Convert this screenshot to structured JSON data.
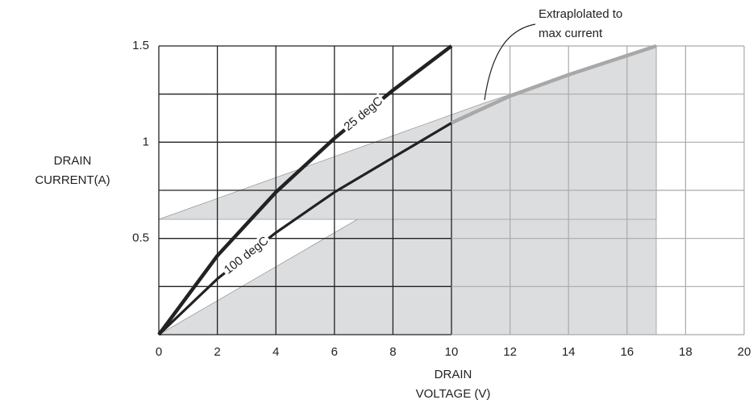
{
  "chart_data": {
    "type": "line",
    "x_label": [
      "DRAIN",
      "VOLTAGE (V)"
    ],
    "y_label": [
      "DRAIN",
      "CURRENT(A)"
    ],
    "annotation": [
      "Extraplolated to",
      "max current"
    ],
    "xlim": [
      0,
      20
    ],
    "ylim": [
      0,
      1.5
    ],
    "xticks": [
      0,
      2,
      4,
      6,
      8,
      10,
      12,
      14,
      16,
      18,
      20
    ],
    "yticks": [
      0.5,
      1,
      1.5
    ],
    "minor_yticks": [
      0.25,
      0.75,
      1.25
    ],
    "dark_grid_xlim": [
      0,
      10
    ],
    "grid": true,
    "series": [
      {
        "name": "25 degC",
        "color": "#222222",
        "x": [
          0,
          2,
          4,
          6,
          8,
          10
        ],
        "values": [
          0,
          0.41,
          0.74,
          1.02,
          1.27,
          1.5
        ]
      },
      {
        "name": "100 degC",
        "color": "#222222",
        "x": [
          0,
          2,
          4,
          6,
          8,
          10
        ],
        "values": [
          0,
          0.29,
          0.53,
          0.74,
          0.92,
          1.1
        ]
      },
      {
        "color": "#a8a8a8",
        "x": [
          10,
          12,
          14,
          16,
          17
        ],
        "values": [
          1.1,
          1.24,
          1.35,
          1.45,
          1.5
        ]
      }
    ]
  }
}
